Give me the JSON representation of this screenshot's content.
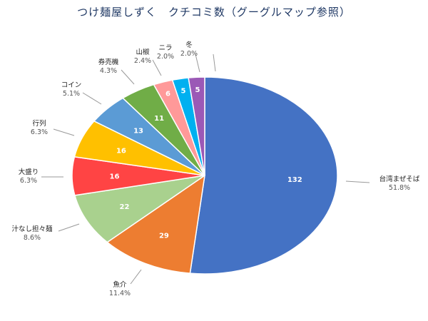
{
  "chart_data": {
    "type": "pie",
    "title": "つけ麺屋しずく　クチコミ数（グーグルマップ参照）",
    "start": "top",
    "direction": "clockwise",
    "slices": [
      {
        "label": "台湾まぜそば",
        "value": 132,
        "percent": "51.8%",
        "color": "#4472C4"
      },
      {
        "label": "魚介",
        "value": 29,
        "percent": "11.4%",
        "color": "#ED7D31"
      },
      {
        "label": "汁なし担々麺",
        "value": 22,
        "percent": "8.6%",
        "color": "#A9D18E"
      },
      {
        "label": "大盛り",
        "value": 16,
        "percent": "6.3%",
        "color": "#FF4444"
      },
      {
        "label": "行列",
        "value": 16,
        "percent": "6.3%",
        "color": "#FFC000"
      },
      {
        "label": "コイン",
        "value": 13,
        "percent": "5.1%",
        "color": "#5B9BD5"
      },
      {
        "label": "券売機",
        "value": 11,
        "percent": "4.3%",
        "color": "#70AD47"
      },
      {
        "label": "山椒",
        "value": 6,
        "percent": "2.4%",
        "color": "#FF9999"
      },
      {
        "label": "ニラ",
        "value": 5,
        "percent": "2.0%",
        "color": "#00B0F0"
      },
      {
        "label": "冬",
        "value": 5,
        "percent": "2.0%",
        "color": "#9B59B6"
      }
    ]
  }
}
